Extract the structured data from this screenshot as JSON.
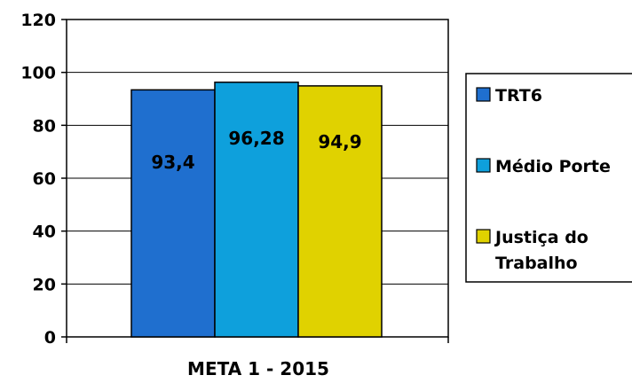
{
  "chart_data": {
    "type": "bar",
    "categories": [
      "META 1 - 2015"
    ],
    "series": [
      {
        "name": "TRT6",
        "values": [
          93.4
        ],
        "label": "93,4",
        "color": "#1f6fcf"
      },
      {
        "name": "Médio Porte",
        "values": [
          96.28
        ],
        "label": "96,28",
        "color": "#0ea0dc"
      },
      {
        "name": "Justiça do Trabalho",
        "values": [
          94.9
        ],
        "label": "94,9",
        "color": "#e0d200"
      }
    ],
    "legend_lines": [
      [
        "TRT6"
      ],
      [
        "Médio Porte"
      ],
      [
        "Justiça do",
        "Trabalho"
      ]
    ],
    "xlabel": "META 1 - 2015",
    "ylabel": "",
    "ylim": [
      0,
      120
    ],
    "yticks": [
      0,
      20,
      40,
      60,
      80,
      100,
      120
    ],
    "grid": true,
    "legend_position": "right"
  }
}
